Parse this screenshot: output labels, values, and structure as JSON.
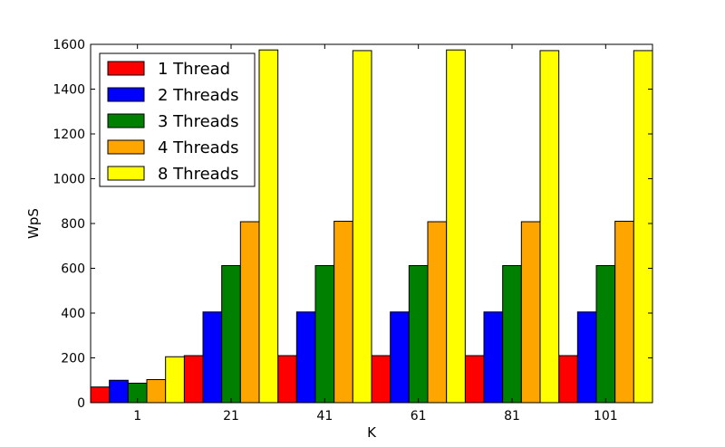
{
  "chart_data": {
    "type": "bar",
    "xlabel": "K",
    "ylabel": "WpS",
    "categories": [
      "1",
      "21",
      "41",
      "61",
      "81",
      "101"
    ],
    "ylim": [
      0,
      1600
    ],
    "yticks": [
      0,
      200,
      400,
      600,
      800,
      1000,
      1200,
      1400,
      1600
    ],
    "legend_position": "top-left",
    "grid": false,
    "series": [
      {
        "name": "1 Thread",
        "color": "#ff0000",
        "values": [
          70,
          210,
          210,
          210,
          210,
          210
        ]
      },
      {
        "name": "2 Threads",
        "color": "#0000ff",
        "values": [
          100,
          405,
          405,
          405,
          405,
          405
        ]
      },
      {
        "name": "3 Threads",
        "color": "#008000",
        "values": [
          87,
          612,
          612,
          612,
          612,
          612
        ]
      },
      {
        "name": "4 Threads",
        "color": "#ffa500",
        "values": [
          103,
          808,
          810,
          808,
          808,
          810
        ]
      },
      {
        "name": "8 Threads",
        "color": "#ffff00",
        "values": [
          205,
          1575,
          1572,
          1575,
          1572,
          1572
        ]
      }
    ]
  }
}
